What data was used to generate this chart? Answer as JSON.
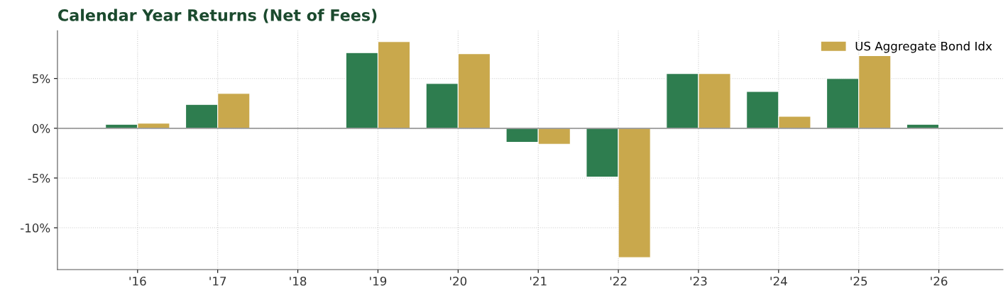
{
  "chart_data": {
    "type": "bar",
    "title": "Calendar Year Returns (Net of Fees)",
    "categories": [
      "'16",
      "'17",
      "'18",
      "'19",
      "'20",
      "'21",
      "'22",
      "'23",
      "'24",
      "'25",
      "'26"
    ],
    "series": [
      {
        "color": "#2e7d4f",
        "values": [
          0.4,
          2.4,
          null,
          7.6,
          4.5,
          -1.4,
          -4.9,
          5.5,
          3.7,
          5.0,
          0.4
        ]
      },
      {
        "name": "US Aggregate Bond Idx",
        "color": "#c9a84c",
        "values": [
          0.5,
          3.5,
          null,
          8.7,
          7.5,
          -1.6,
          -13.0,
          5.5,
          1.2,
          7.3,
          null
        ]
      }
    ],
    "ylim": [
      -14.2,
      9.8
    ],
    "yticks": [
      {
        "value": -10,
        "label": "-10%"
      },
      {
        "value": -5,
        "label": "-5%"
      },
      {
        "value": 0,
        "label": "0%"
      },
      {
        "value": 5,
        "label": "5%"
      }
    ],
    "ref_lines": [
      {
        "axis": "y",
        "value": 0,
        "color": "#999999"
      }
    ],
    "grid": true,
    "legend": "top right"
  }
}
